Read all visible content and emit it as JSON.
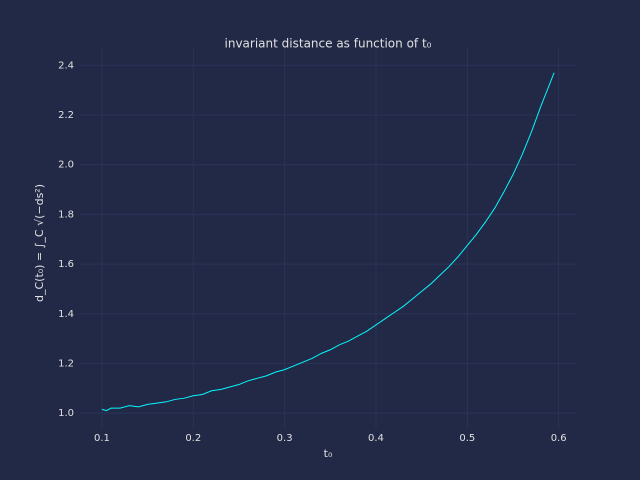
{
  "chart_data": {
    "type": "line",
    "title": "invariant distance as function of t₀",
    "x_label": "t₀",
    "y_label": "d_C(t₀) = ∫_C √(−ds²)",
    "x": [
      0.1,
      0.105,
      0.11,
      0.12,
      0.13,
      0.14,
      0.15,
      0.16,
      0.17,
      0.18,
      0.19,
      0.2,
      0.21,
      0.22,
      0.23,
      0.24,
      0.25,
      0.26,
      0.27,
      0.28,
      0.29,
      0.3,
      0.31,
      0.32,
      0.33,
      0.34,
      0.35,
      0.36,
      0.37,
      0.38,
      0.39,
      0.4,
      0.41,
      0.42,
      0.43,
      0.44,
      0.45,
      0.46,
      0.47,
      0.48,
      0.49,
      0.5,
      0.51,
      0.52,
      0.53,
      0.54,
      0.55,
      0.56,
      0.57,
      0.58,
      0.595
    ],
    "series": [
      {
        "name": "d_C",
        "color": "#08F7FE",
        "values": [
          1.015,
          1.01,
          1.02,
          1.02,
          1.03,
          1.025,
          1.035,
          1.04,
          1.045,
          1.055,
          1.06,
          1.07,
          1.075,
          1.09,
          1.095,
          1.105,
          1.115,
          1.13,
          1.14,
          1.15,
          1.165,
          1.175,
          1.19,
          1.205,
          1.22,
          1.24,
          1.255,
          1.275,
          1.29,
          1.31,
          1.33,
          1.355,
          1.38,
          1.405,
          1.43,
          1.46,
          1.49,
          1.52,
          1.555,
          1.59,
          1.63,
          1.675,
          1.72,
          1.77,
          1.825,
          1.89,
          1.96,
          2.04,
          2.13,
          2.23,
          2.37
        ]
      }
    ],
    "xlim": [
      0.076,
      0.619
    ],
    "ylim": [
      0.94,
      2.47
    ],
    "xticks": [
      0.1,
      0.2,
      0.3,
      0.4,
      0.5,
      0.6
    ],
    "yticks": [
      {
        "value": 1,
        "label": "1.0"
      },
      1.2,
      1.4,
      1.6,
      1.8,
      {
        "value": 2,
        "label": "2.0"
      },
      2.2,
      2.4
    ],
    "grid": true,
    "background": "#212946",
    "grid_color": "#2A3459"
  }
}
